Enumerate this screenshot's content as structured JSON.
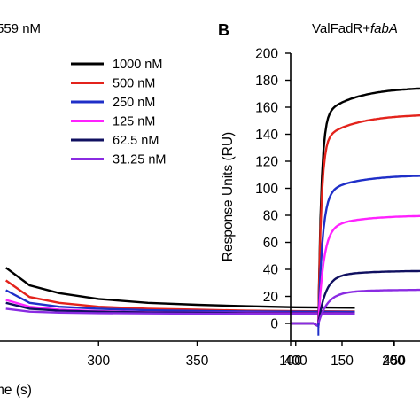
{
  "figure": {
    "panel_a_title_fragment": "559 nM",
    "panel_b_letter": "B",
    "panel_b_title_prefix": "ValFadR+",
    "panel_b_title_italic": "fabA"
  },
  "chart_data": [
    {
      "type": "line",
      "panel": "A",
      "title": "559 nM",
      "xlabel": "me (s)",
      "ylabel": "",
      "xlim": [
        250,
        450
      ],
      "x_ticks": [
        300,
        350,
        400,
        450
      ],
      "x_tick_labels": [
        "300",
        "350",
        "400",
        "450"
      ],
      "grid": false,
      "legend_position": "top-right",
      "series": [
        {
          "name": "1000 nM",
          "color": "#000000",
          "x": [
            253,
            265,
            280,
            300,
            325,
            350,
            375,
            400,
            430
          ],
          "y": [
            48,
            30,
            22,
            16,
            12,
            10,
            8.5,
            7.5,
            7
          ]
        },
        {
          "name": "500 nM",
          "color": "#e3231c",
          "x": [
            253,
            265,
            280,
            300,
            325,
            350,
            375,
            400,
            430
          ],
          "y": [
            35,
            18,
            12,
            8,
            6,
            5,
            4,
            3.5,
            3.3
          ]
        },
        {
          "name": "250 nM",
          "color": "#1f2fc8",
          "x": [
            253,
            265,
            280,
            300,
            325,
            350,
            375,
            400,
            430
          ],
          "y": [
            25,
            12,
            8,
            6,
            4.5,
            3.8,
            3.3,
            3,
            2.8
          ]
        },
        {
          "name": "125 nM",
          "color": "#ff22ff",
          "x": [
            253,
            265,
            280,
            300,
            325,
            350,
            375,
            400,
            430
          ],
          "y": [
            15,
            8,
            5,
            3.5,
            2.5,
            2,
            1.8,
            1.6,
            1.5
          ]
        },
        {
          "name": "62.5 nM",
          "color": "#101060",
          "x": [
            253,
            265,
            280,
            300,
            325,
            350,
            375,
            400,
            430
          ],
          "y": [
            12,
            6,
            4,
            3,
            2.2,
            1.8,
            1.5,
            1.3,
            1.2
          ]
        },
        {
          "name": "31.25 nM",
          "color": "#8a2be2",
          "x": [
            253,
            265,
            280,
            300,
            325,
            350,
            375,
            400,
            430
          ],
          "y": [
            6,
            3,
            2,
            1.5,
            1.2,
            1,
            0.9,
            0.8,
            0.8
          ]
        }
      ]
    },
    {
      "type": "line",
      "panel": "B",
      "title": "ValFadR+fabA",
      "xlabel": "",
      "ylabel": "Response Units (RU)",
      "xlim": [
        100,
        230
      ],
      "ylim": [
        0,
        200
      ],
      "x_ticks": [
        100,
        150,
        200
      ],
      "x_tick_labels": [
        "100",
        "150",
        "200"
      ],
      "y_ticks": [
        0,
        20,
        40,
        60,
        80,
        100,
        120,
        140,
        160,
        180,
        200
      ],
      "y_tick_labels": [
        "0",
        "20",
        "40",
        "60",
        "80",
        "100",
        "120",
        "140",
        "160",
        "180",
        "200"
      ],
      "grid": false,
      "series": [
        {
          "name": "1000 nM",
          "color": "#000000",
          "plateau": 175,
          "rate": 0.35
        },
        {
          "name": "500 nM",
          "color": "#e3231c",
          "plateau": 155,
          "rate": 0.35
        },
        {
          "name": "250 nM",
          "color": "#1f2fc8",
          "plateau": 110,
          "rate": 0.25
        },
        {
          "name": "125 nM",
          "color": "#ff22ff",
          "plateau": 80,
          "rate": 0.2
        },
        {
          "name": "62.5 nM",
          "color": "#101060",
          "plateau": 39,
          "rate": 0.15
        },
        {
          "name": "31.25 nM",
          "color": "#8a2be2",
          "plateau": 25,
          "rate": 0.12
        }
      ],
      "injection_start_x": 127
    }
  ]
}
